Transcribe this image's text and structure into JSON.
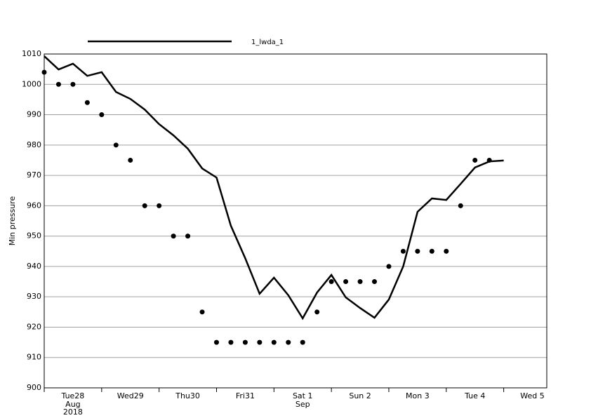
{
  "chart_data": {
    "type": "line",
    "y_label": "Min pressure",
    "ylim": [
      900,
      1010
    ],
    "yticks": [
      900,
      910,
      920,
      930,
      940,
      950,
      960,
      970,
      980,
      990,
      1000,
      1010
    ],
    "xlim": [
      0,
      210
    ],
    "xticks": [
      {
        "value": 0,
        "label": "Tue28",
        "sublabel": [
          "Aug",
          "2018"
        ]
      },
      {
        "value": 24,
        "label": "Wed29"
      },
      {
        "value": 48,
        "label": "Thu30"
      },
      {
        "value": 72,
        "label": "Fri31"
      },
      {
        "value": 96,
        "label": "Sat 1",
        "sublabel": [
          "Sep"
        ]
      },
      {
        "value": 120,
        "label": "Sun 2",
        "color": "#e00000"
      },
      {
        "value": 144,
        "label": "Mon 3"
      },
      {
        "value": 168,
        "label": "Tue 4"
      },
      {
        "value": 192,
        "label": "Wed 5"
      }
    ],
    "grid": true,
    "series": [
      {
        "name": "1_lwda_1",
        "color": "#000000",
        "legend_color": "#000066",
        "style": "line",
        "x": [
          0,
          6,
          12,
          18,
          24,
          30,
          36,
          42,
          48,
          54,
          60,
          66,
          72,
          78,
          84,
          90,
          96,
          102,
          108,
          114,
          120,
          126,
          132,
          138,
          144,
          150,
          156,
          162,
          168,
          174,
          180,
          186,
          192
        ],
        "values": [
          1009.3,
          1004.9,
          1006.8,
          1002.8,
          1004,
          997.5,
          995.2,
          991.7,
          986.9,
          983.2,
          978.8,
          972.3,
          969.3,
          953.4,
          942.7,
          931,
          936.3,
          930.5,
          922.9,
          931.4,
          937.2,
          929.8,
          926.3,
          923.1,
          929.1,
          940,
          958,
          962.4,
          961.9,
          967.2,
          972.6,
          974.6,
          974.9
        ]
      },
      {
        "color": "#000000",
        "style": "dots",
        "x": [
          0,
          6,
          12,
          18,
          24,
          30,
          36,
          42,
          48,
          54,
          60,
          66,
          72,
          78,
          84,
          90,
          96,
          102,
          108,
          114,
          120,
          126,
          132,
          138,
          144,
          150,
          156,
          162,
          168,
          174,
          180,
          186
        ],
        "values": [
          1004,
          1000,
          1000,
          994,
          990,
          980,
          975,
          960,
          960,
          950,
          950,
          925,
          915,
          915,
          915,
          915,
          915,
          915,
          915,
          925,
          935,
          935,
          935,
          935,
          940,
          945,
          945,
          945,
          945,
          960,
          975,
          975
        ]
      }
    ]
  }
}
